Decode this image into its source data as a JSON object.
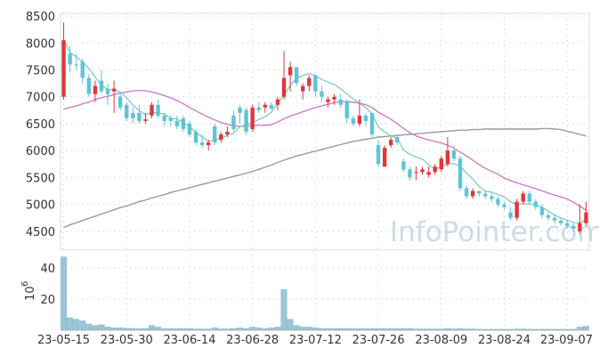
{
  "chart_data": {
    "type": "candlestick",
    "watermark": "InfoPointer.com",
    "colors": {
      "up": "#e2353c",
      "down": "#5ec4d6",
      "ma_short": "#79c8b8",
      "ma_mid": "#cc76c6",
      "ma_long": "#9a9a9a",
      "volume": "#9ac6d6"
    },
    "price_axis": {
      "ticks": [
        4500,
        5000,
        5500,
        6000,
        6500,
        7000,
        7500,
        8000,
        8500
      ],
      "range": [
        4150,
        8550
      ]
    },
    "volume_axis": {
      "unit_label": "10",
      "unit_exp": "6",
      "ticks": [
        20,
        40
      ],
      "range": [
        0,
        48
      ]
    },
    "x_tick_labels": [
      "23-05-15",
      "23-05-30",
      "23-06-14",
      "23-06-28",
      "23-07-12",
      "23-07-26",
      "23-08-09",
      "23-08-24",
      "23-09-07"
    ],
    "x_tick_index": [
      0,
      10,
      20,
      30,
      40,
      50,
      60,
      70,
      80
    ],
    "candles": [
      [
        7000,
        8380,
        6950,
        8050
      ],
      [
        7800,
        7950,
        7450,
        7600
      ],
      [
        7600,
        7800,
        7500,
        7580
      ],
      [
        7650,
        7700,
        7250,
        7350
      ],
      [
        7350,
        7420,
        7000,
        7050
      ],
      [
        7050,
        7300,
        6900,
        7200
      ],
      [
        7300,
        7500,
        7050,
        7100
      ],
      [
        7150,
        7250,
        6850,
        7050
      ],
      [
        7100,
        7300,
        6700,
        7150
      ],
      [
        7000,
        7100,
        6750,
        6800
      ],
      [
        6850,
        6900,
        6550,
        6600
      ],
      [
        6700,
        6800,
        6500,
        6600
      ],
      [
        6700,
        6850,
        6500,
        6550
      ],
      [
        6550,
        6700,
        6500,
        6580
      ],
      [
        6650,
        6900,
        6600,
        6850
      ],
      [
        6850,
        6950,
        6600,
        6650
      ],
      [
        6650,
        6700,
        6450,
        6550
      ],
      [
        6600,
        6650,
        6450,
        6550
      ],
      [
        6550,
        6650,
        6400,
        6450
      ],
      [
        6600,
        6650,
        6350,
        6400
      ],
      [
        6500,
        6550,
        6250,
        6300
      ],
      [
        6350,
        6400,
        6100,
        6150
      ],
      [
        6150,
        6300,
        6050,
        6100
      ],
      [
        6100,
        6200,
        6000,
        6150
      ],
      [
        6450,
        6500,
        6100,
        6150
      ],
      [
        6200,
        6350,
        6150,
        6300
      ],
      [
        6300,
        6450,
        6250,
        6350
      ],
      [
        6650,
        6750,
        6350,
        6400
      ],
      [
        6800,
        6850,
        6500,
        6700
      ],
      [
        6750,
        6800,
        6300,
        6350
      ],
      [
        6400,
        6850,
        6350,
        6800
      ],
      [
        6800,
        6900,
        6700,
        6750
      ],
      [
        6800,
        6900,
        6700,
        6850
      ],
      [
        6850,
        6900,
        6750,
        6780
      ],
      [
        6850,
        7000,
        6750,
        6950
      ],
      [
        7000,
        7850,
        6950,
        7350
      ],
      [
        7400,
        7650,
        7100,
        7550
      ],
      [
        7550,
        7550,
        7200,
        7250
      ],
      [
        7100,
        7250,
        6950,
        7200
      ],
      [
        7200,
        7400,
        7100,
        7350
      ],
      [
        7400,
        7400,
        7000,
        7100
      ],
      [
        7100,
        7200,
        6900,
        7000
      ],
      [
        6900,
        7000,
        6800,
        6950
      ],
      [
        6950,
        7050,
        6850,
        7000
      ],
      [
        6950,
        7050,
        6800,
        6850
      ],
      [
        6900,
        6950,
        6500,
        6600
      ],
      [
        6600,
        6650,
        6450,
        6500
      ],
      [
        6500,
        6950,
        6450,
        6650
      ],
      [
        6650,
        6700,
        6450,
        6550
      ],
      [
        6700,
        6700,
        6250,
        6300
      ],
      [
        6100,
        6200,
        5700,
        5750
      ],
      [
        5700,
        6100,
        5700,
        6050
      ],
      [
        6100,
        6250,
        6050,
        6200
      ],
      [
        6250,
        6300,
        6100,
        6150
      ],
      [
        5800,
        5850,
        5600,
        5650
      ],
      [
        5650,
        5700,
        5450,
        5500
      ],
      [
        5600,
        5700,
        5450,
        5600
      ],
      [
        5600,
        5700,
        5550,
        5650
      ],
      [
        5550,
        5700,
        5500,
        5600
      ],
      [
        5600,
        5750,
        5550,
        5700
      ],
      [
        5650,
        5900,
        5600,
        5850
      ],
      [
        5750,
        6250,
        5700,
        6000
      ],
      [
        6000,
        6100,
        5800,
        5850
      ],
      [
        5850,
        5900,
        5250,
        5300
      ],
      [
        5300,
        5350,
        5100,
        5150
      ],
      [
        5150,
        5300,
        5100,
        5250
      ],
      [
        5250,
        5250,
        5150,
        5200
      ],
      [
        5200,
        5250,
        5100,
        5150
      ],
      [
        5150,
        5200,
        5050,
        5100
      ],
      [
        5100,
        5150,
        4950,
        5000
      ],
      [
        5000,
        5050,
        4900,
        4950
      ],
      [
        4850,
        4950,
        4700,
        4750
      ],
      [
        4750,
        5100,
        4700,
        5050
      ],
      [
        5050,
        5250,
        5000,
        5200
      ],
      [
        5200,
        5250,
        5000,
        5050
      ],
      [
        5050,
        5100,
        4900,
        4950
      ],
      [
        4950,
        5000,
        4750,
        4800
      ],
      [
        4800,
        4850,
        4700,
        4750
      ],
      [
        4750,
        4800,
        4650,
        4700
      ],
      [
        4700,
        4750,
        4600,
        4650
      ],
      [
        4650,
        4700,
        4550,
        4600
      ],
      [
        4600,
        4650,
        4500,
        4550
      ],
      [
        4500,
        5000,
        4450,
        4650
      ],
      [
        4650,
        5050,
        4600,
        4850
      ]
    ],
    "ma_short": [
      8050,
      7825,
      7743,
      7645,
      7527,
      7365,
      7215,
      7133,
      7136,
      7083,
      6983,
      6843,
      6743,
      6667,
      6707,
      6697,
      6683,
      6603,
      6583,
      6523,
      6445,
      6333,
      6253,
      6175,
      6198,
      6223,
      6287,
      6317,
      6448,
      6473,
      6522,
      6575,
      6630,
      6713,
      6878,
      7037,
      7205,
      7345,
      7396,
      7433,
      7393,
      7320,
      7272,
      7226,
      7146,
      7050,
      6962,
      6880,
      6798,
      6682,
      6440,
      6346,
      6274,
      6228,
      6008,
      5931,
      5881,
      5841,
      5735,
      5660,
      5694,
      5752,
      5757,
      5709,
      5582,
      5467,
      5333,
      5248,
      5225,
      5183,
      5140,
      5048,
      4999,
      5013,
      5008,
      4988,
      4942,
      4875,
      4802,
      4747,
      4706,
      4659,
      4658,
      4712
    ],
    "ma_mid": [
      6770,
      6800,
      6830,
      6870,
      6900,
      6950,
      6980,
      7010,
      7040,
      7070,
      7090,
      7110,
      7120,
      7110,
      7090,
      7060,
      7020,
      6980,
      6930,
      6870,
      6800,
      6740,
      6680,
      6620,
      6570,
      6520,
      6490,
      6460,
      6450,
      6450,
      6460,
      6470,
      6470,
      6480,
      6530,
      6590,
      6640,
      6680,
      6720,
      6760,
      6800,
      6830,
      6860,
      6890,
      6910,
      6910,
      6900,
      6880,
      6850,
      6800,
      6710,
      6650,
      6580,
      6500,
      6410,
      6330,
      6270,
      6230,
      6200,
      6170,
      6140,
      6100,
      6040,
      5970,
      5900,
      5820,
      5740,
      5670,
      5610,
      5560,
      5490,
      5440,
      5400,
      5360,
      5330,
      5290,
      5250,
      5210,
      5170,
      5140,
      5100,
      5040,
      4970,
      4890
    ],
    "ma_long": [
      4570,
      4620,
      4660,
      4700,
      4740,
      4780,
      4820,
      4860,
      4900,
      4940,
      4970,
      5010,
      5050,
      5080,
      5120,
      5150,
      5180,
      5220,
      5250,
      5280,
      5310,
      5340,
      5370,
      5400,
      5430,
      5460,
      5490,
      5520,
      5550,
      5580,
      5610,
      5650,
      5690,
      5730,
      5780,
      5820,
      5860,
      5900,
      5930,
      5960,
      5990,
      6020,
      6050,
      6080,
      6110,
      6140,
      6170,
      6190,
      6210,
      6230,
      6250,
      6260,
      6270,
      6280,
      6290,
      6300,
      6310,
      6320,
      6330,
      6340,
      6350,
      6360,
      6370,
      6380,
      6380,
      6390,
      6390,
      6400,
      6400,
      6400,
      6400,
      6400,
      6400,
      6400,
      6400,
      6400,
      6410,
      6410,
      6400,
      6390,
      6360,
      6330,
      6300,
      6270
    ],
    "volume": [
      47,
      8,
      7,
      6,
      4,
      3,
      3.5,
      2,
      1.5,
      1.5,
      1.2,
      1.1,
      1,
      1,
      3,
      2,
      1,
      1,
      1,
      1,
      1,
      0.8,
      0.8,
      0.8,
      1.5,
      0.8,
      0.8,
      1,
      1.5,
      1,
      2,
      1.5,
      1,
      1.5,
      2,
      26,
      7,
      3,
      2,
      2,
      1.5,
      1,
      1,
      1,
      1,
      1,
      1,
      1,
      1,
      1,
      1,
      1,
      1,
      1,
      1,
      1,
      0.8,
      0.8,
      0.8,
      0.8,
      0.8,
      1,
      0.8,
      1,
      0.8,
      0.8,
      0.6,
      0.6,
      0.6,
      0.6,
      0.6,
      0.6,
      0.8,
      0.8,
      0.6,
      0.6,
      0.6,
      0.6,
      0.6,
      0.6,
      0.6,
      0.6,
      2,
      2.5
    ]
  }
}
